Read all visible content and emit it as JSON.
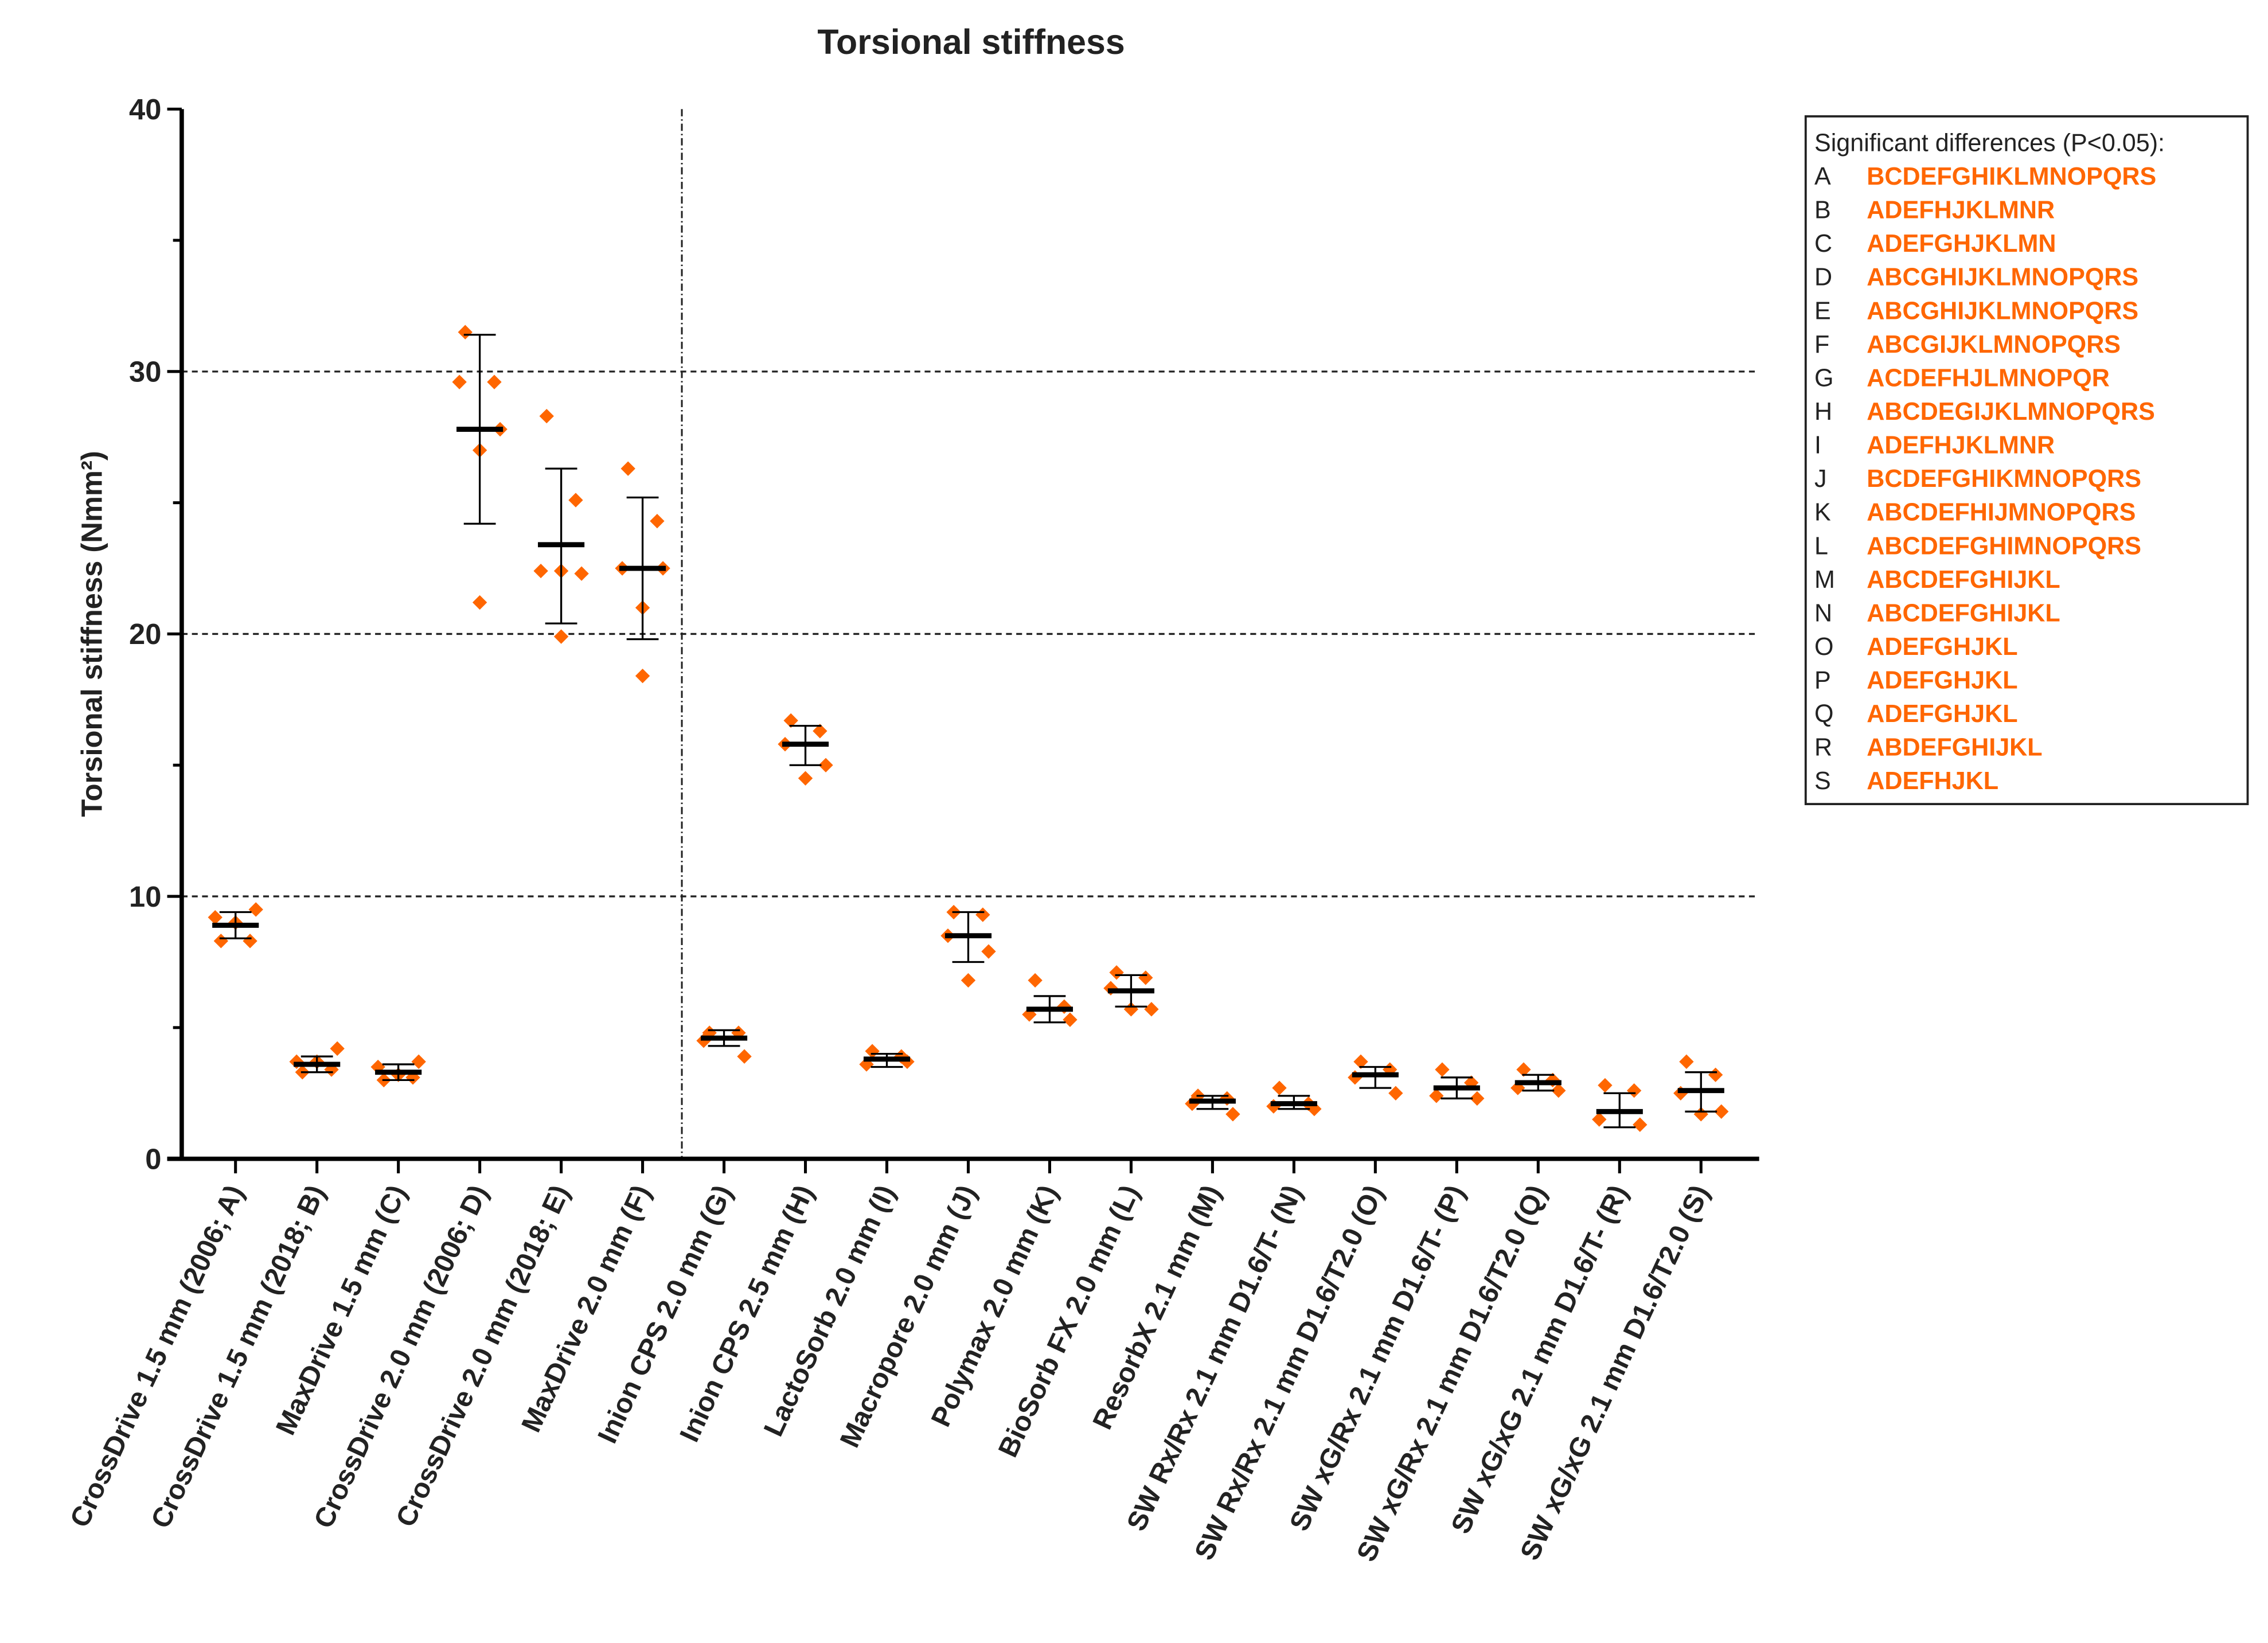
{
  "chart_data": {
    "type": "scatter",
    "title": "Torsional stiffness",
    "xlabel": "",
    "ylabel": "Torsional stiffness  (Nmm²)",
    "ylim": [
      0,
      40
    ],
    "yticks": [
      0,
      10,
      20,
      30,
      40
    ],
    "grid": "horizontal dashed at 10, 20, 30",
    "separator_after_category": 5,
    "colors": {
      "points": "#FF6600",
      "mean": "#000000",
      "legend_text": "#FF6600"
    },
    "categories": [
      "CrossDrive 1.5 mm (2006; A)",
      "CrossDrive 1.5 mm (2018; B)",
      "MaxDrive 1.5 mm (C)",
      "CrossDrive 2.0 mm (2006; D)",
      "CrossDrive 2.0 mm (2018; E)",
      "MaxDrive 2.0 mm (F)",
      "Inion CPS 2.0 mm (G)",
      "Inion CPS 2.5 mm (H)",
      "LactoSorb 2.0 mm (I)",
      "Macropore 2.0 mm (J)",
      "Polymax 2.0 mm (K)",
      "BioSorb FX 2.0 mm (L)",
      "ResorbX 2.1 mm (M)",
      "SW Rx/Rx 2.1 mm D1.6/T- (N)",
      "SW Rx/Rx 2.1 mm D1.6/T2.0 (O)",
      "SW xG/Rx 2.1 mm D1.6/T- (P)",
      "SW xG/Rx 2.1 mm D1.6/T2.0 (Q)",
      "SW xG/xG 2.1 mm D1.6/T- (R)",
      "SW xG/xG 2.1 mm D1.6/T2.0 (S)"
    ],
    "series": [
      {
        "mean": 8.9,
        "lo": 8.4,
        "hi": 9.4,
        "points": [
          8.3,
          8.3,
          9.2,
          9.5,
          9.0
        ]
      },
      {
        "mean": 3.6,
        "lo": 3.3,
        "hi": 3.9,
        "points": [
          3.3,
          3.4,
          3.7,
          4.2,
          3.7
        ]
      },
      {
        "mean": 3.3,
        "lo": 3.0,
        "hi": 3.6,
        "points": [
          3.0,
          3.1,
          3.5,
          3.7,
          3.2
        ]
      },
      {
        "mean": 27.8,
        "lo": 24.2,
        "hi": 31.4,
        "points": [
          31.5,
          29.6,
          29.6,
          27.8,
          27.0,
          21.2
        ]
      },
      {
        "mean": 23.4,
        "lo": 20.4,
        "hi": 26.3,
        "points": [
          28.3,
          25.1,
          22.4,
          22.3,
          22.4,
          19.9
        ]
      },
      {
        "mean": 22.5,
        "lo": 19.8,
        "hi": 25.2,
        "points": [
          26.3,
          24.3,
          22.5,
          22.5,
          21.0,
          18.4
        ]
      },
      {
        "mean": 4.6,
        "lo": 4.3,
        "hi": 4.9,
        "points": [
          4.8,
          4.8,
          4.5,
          3.9
        ]
      },
      {
        "mean": 15.8,
        "lo": 15.0,
        "hi": 16.5,
        "points": [
          16.7,
          16.3,
          15.8,
          15.0,
          14.5
        ]
      },
      {
        "mean": 3.8,
        "lo": 3.5,
        "hi": 4.0,
        "points": [
          4.1,
          3.9,
          3.6,
          3.7
        ]
      },
      {
        "mean": 8.5,
        "lo": 7.5,
        "hi": 9.4,
        "points": [
          9.4,
          9.3,
          8.5,
          7.9,
          6.8
        ]
      },
      {
        "mean": 5.7,
        "lo": 5.2,
        "hi": 6.2,
        "points": [
          6.8,
          5.8,
          5.5,
          5.3
        ]
      },
      {
        "mean": 6.4,
        "lo": 5.8,
        "hi": 7.0,
        "points": [
          7.1,
          6.9,
          6.5,
          5.7,
          5.7
        ]
      },
      {
        "mean": 2.2,
        "lo": 1.9,
        "hi": 2.4,
        "points": [
          2.4,
          2.3,
          2.1,
          1.7
        ]
      },
      {
        "mean": 2.1,
        "lo": 1.9,
        "hi": 2.4,
        "points": [
          2.7,
          2.1,
          2.0,
          1.9
        ]
      },
      {
        "mean": 3.2,
        "lo": 2.7,
        "hi": 3.5,
        "points": [
          3.7,
          3.4,
          3.1,
          2.5
        ]
      },
      {
        "mean": 2.7,
        "lo": 2.3,
        "hi": 3.1,
        "points": [
          3.4,
          2.9,
          2.4,
          2.3
        ]
      },
      {
        "mean": 2.9,
        "lo": 2.6,
        "hi": 3.2,
        "points": [
          3.4,
          3.0,
          2.7,
          2.6
        ]
      },
      {
        "mean": 1.8,
        "lo": 1.2,
        "hi": 2.5,
        "points": [
          2.8,
          2.6,
          1.5,
          1.3
        ]
      },
      {
        "mean": 2.6,
        "lo": 1.8,
        "hi": 3.3,
        "points": [
          3.7,
          3.2,
          2.5,
          1.8,
          1.7
        ]
      }
    ],
    "legend": {
      "title": "Significant differences (P<0.05):",
      "placement": "right",
      "rows": [
        {
          "key": "A",
          "value": "BCDEFGHIKLMNOPQRS"
        },
        {
          "key": "B",
          "value": "ADEFHJKLMNR"
        },
        {
          "key": "C",
          "value": "ADEFGHJKLMN"
        },
        {
          "key": "D",
          "value": "ABCGHIJKLMNOPQRS"
        },
        {
          "key": "E",
          "value": "ABCGHIJKLMNOPQRS"
        },
        {
          "key": "F",
          "value": "ABCGIJKLMNOPQRS"
        },
        {
          "key": "G",
          "value": "ACDEFHJLMNOPQR"
        },
        {
          "key": "H",
          "value": "ABCDEGIJKLMNOPQRS"
        },
        {
          "key": "I",
          "value": "ADEFHJKLMNR"
        },
        {
          "key": "J",
          "value": "BCDEFGHIKMNOPQRS"
        },
        {
          "key": "K",
          "value": "ABCDEFHIJMNOPQRS"
        },
        {
          "key": "L",
          "value": "ABCDEFGHIMNOPQRS"
        },
        {
          "key": "M",
          "value": "ABCDEFGHIJKL"
        },
        {
          "key": "N",
          "value": "ABCDEFGHIJKL"
        },
        {
          "key": "O",
          "value": "ADEFGHJKL"
        },
        {
          "key": "P",
          "value": "ADEFGHJKL"
        },
        {
          "key": "Q",
          "value": "ADEFGHJKL"
        },
        {
          "key": "R",
          "value": "ABDEFGHIJKL"
        },
        {
          "key": "S",
          "value": "ADEFHJKL"
        }
      ]
    }
  }
}
